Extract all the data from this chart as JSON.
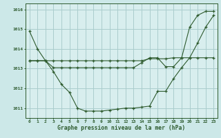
{
  "background_color": "#cce8e8",
  "plot_bg": "#d8eeee",
  "grid_color": "#aacccc",
  "line_color": "#2d5a2d",
  "title": "Graphe pression niveau de la mer (hPa)",
  "x": [
    0,
    1,
    2,
    3,
    4,
    5,
    6,
    7,
    8,
    9,
    10,
    11,
    12,
    13,
    14,
    15,
    16,
    17,
    18,
    19,
    20,
    21,
    22,
    23
  ],
  "ylim": [
    1010.5,
    1016.3
  ],
  "yticks": [
    1011,
    1012,
    1013,
    1014,
    1015,
    1016
  ],
  "series1_flat": [
    1013.4,
    1013.4,
    1013.4,
    1013.4,
    1013.4,
    1013.4,
    1013.4,
    1013.4,
    1013.4,
    1013.4,
    1013.4,
    1013.4,
    1013.4,
    1013.4,
    1013.4,
    1013.5,
    1013.5,
    1013.5,
    1013.55,
    1013.55,
    1013.55,
    1013.55,
    1013.55,
    1013.55
  ],
  "series2_dip": [
    1014.9,
    1014.0,
    1013.4,
    1012.85,
    1012.2,
    1011.8,
    1011.0,
    1010.85,
    1010.85,
    1010.85,
    1010.9,
    1010.95,
    1011.0,
    1011.0,
    1011.05,
    1011.1,
    1011.85,
    1011.85,
    1012.5,
    1013.05,
    1013.55,
    1014.3,
    1015.1,
    1015.7
  ],
  "series3_rise": [
    1013.4,
    1013.4,
    1013.4,
    1013.05,
    1013.05,
    1013.05,
    1013.05,
    1013.05,
    1013.05,
    1013.05,
    1013.05,
    1013.05,
    1013.05,
    1013.05,
    1013.3,
    1013.55,
    1013.55,
    1013.1,
    1013.1,
    1013.55,
    1015.1,
    1015.7,
    1015.9,
    1015.9
  ]
}
